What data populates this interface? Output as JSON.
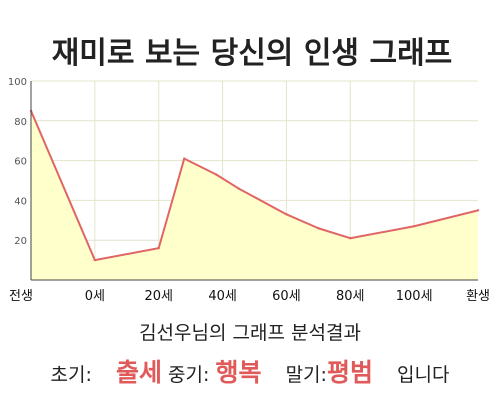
{
  "chart_data": {
    "type": "area",
    "title": "재미로 보는 당신의 인생 그래프",
    "xlabel": "",
    "ylabel": "",
    "ylim": [
      0,
      100
    ],
    "yticks": [
      20,
      40,
      60,
      80,
      100
    ],
    "x_tick_labels": [
      "전생",
      "0세",
      "20세",
      "40세",
      "60세",
      "80세",
      "100세",
      "환생"
    ],
    "grid": true,
    "colors": {
      "line": "#e06666",
      "fill": "#ffffcc",
      "grid": "#e4e4cc"
    },
    "series": [
      {
        "points": [
          {
            "x": "전생",
            "y": 85
          },
          {
            "x": "0세",
            "y": 10
          },
          {
            "x": "20세",
            "y": 16
          },
          {
            "x": "28세",
            "y": 61
          },
          {
            "x": "38세",
            "y": 53
          },
          {
            "x": "45세",
            "y": 46
          },
          {
            "x": "60세",
            "y": 33
          },
          {
            "x": "70세",
            "y": 26
          },
          {
            "x": "80세",
            "y": 21
          },
          {
            "x": "100세",
            "y": 27
          },
          {
            "x": "환생",
            "y": 35
          }
        ]
      }
    ]
  },
  "summary": {
    "line1": "김선우님의 그래프 분석결과",
    "early_label": "초기:",
    "early_value": "출세",
    "middle_label": "중기:",
    "middle_value": "행복",
    "late_label": "말기:",
    "late_value": "평범",
    "suffix": "입니다"
  }
}
